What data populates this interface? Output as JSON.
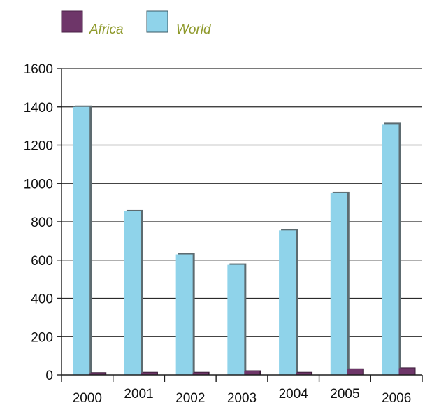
{
  "chart_data": {
    "type": "bar",
    "categories": [
      "2000",
      "2001",
      "2002",
      "2003",
      "2004",
      "2005",
      "2006"
    ],
    "series": [
      {
        "name": "Africa",
        "values": [
          10,
          12,
          12,
          20,
          12,
          30,
          35
        ]
      },
      {
        "name": "World",
        "values": [
          1400,
          855,
          630,
          575,
          755,
          950,
          1310
        ]
      }
    ],
    "ylim": [
      0,
      1600
    ],
    "yticks": [
      0,
      200,
      400,
      600,
      800,
      1000,
      1200,
      1400,
      1600
    ],
    "grid": true,
    "legend_position": "top-left",
    "colors": {
      "Africa": "#6e3669",
      "World": "#8fd3ea"
    }
  }
}
